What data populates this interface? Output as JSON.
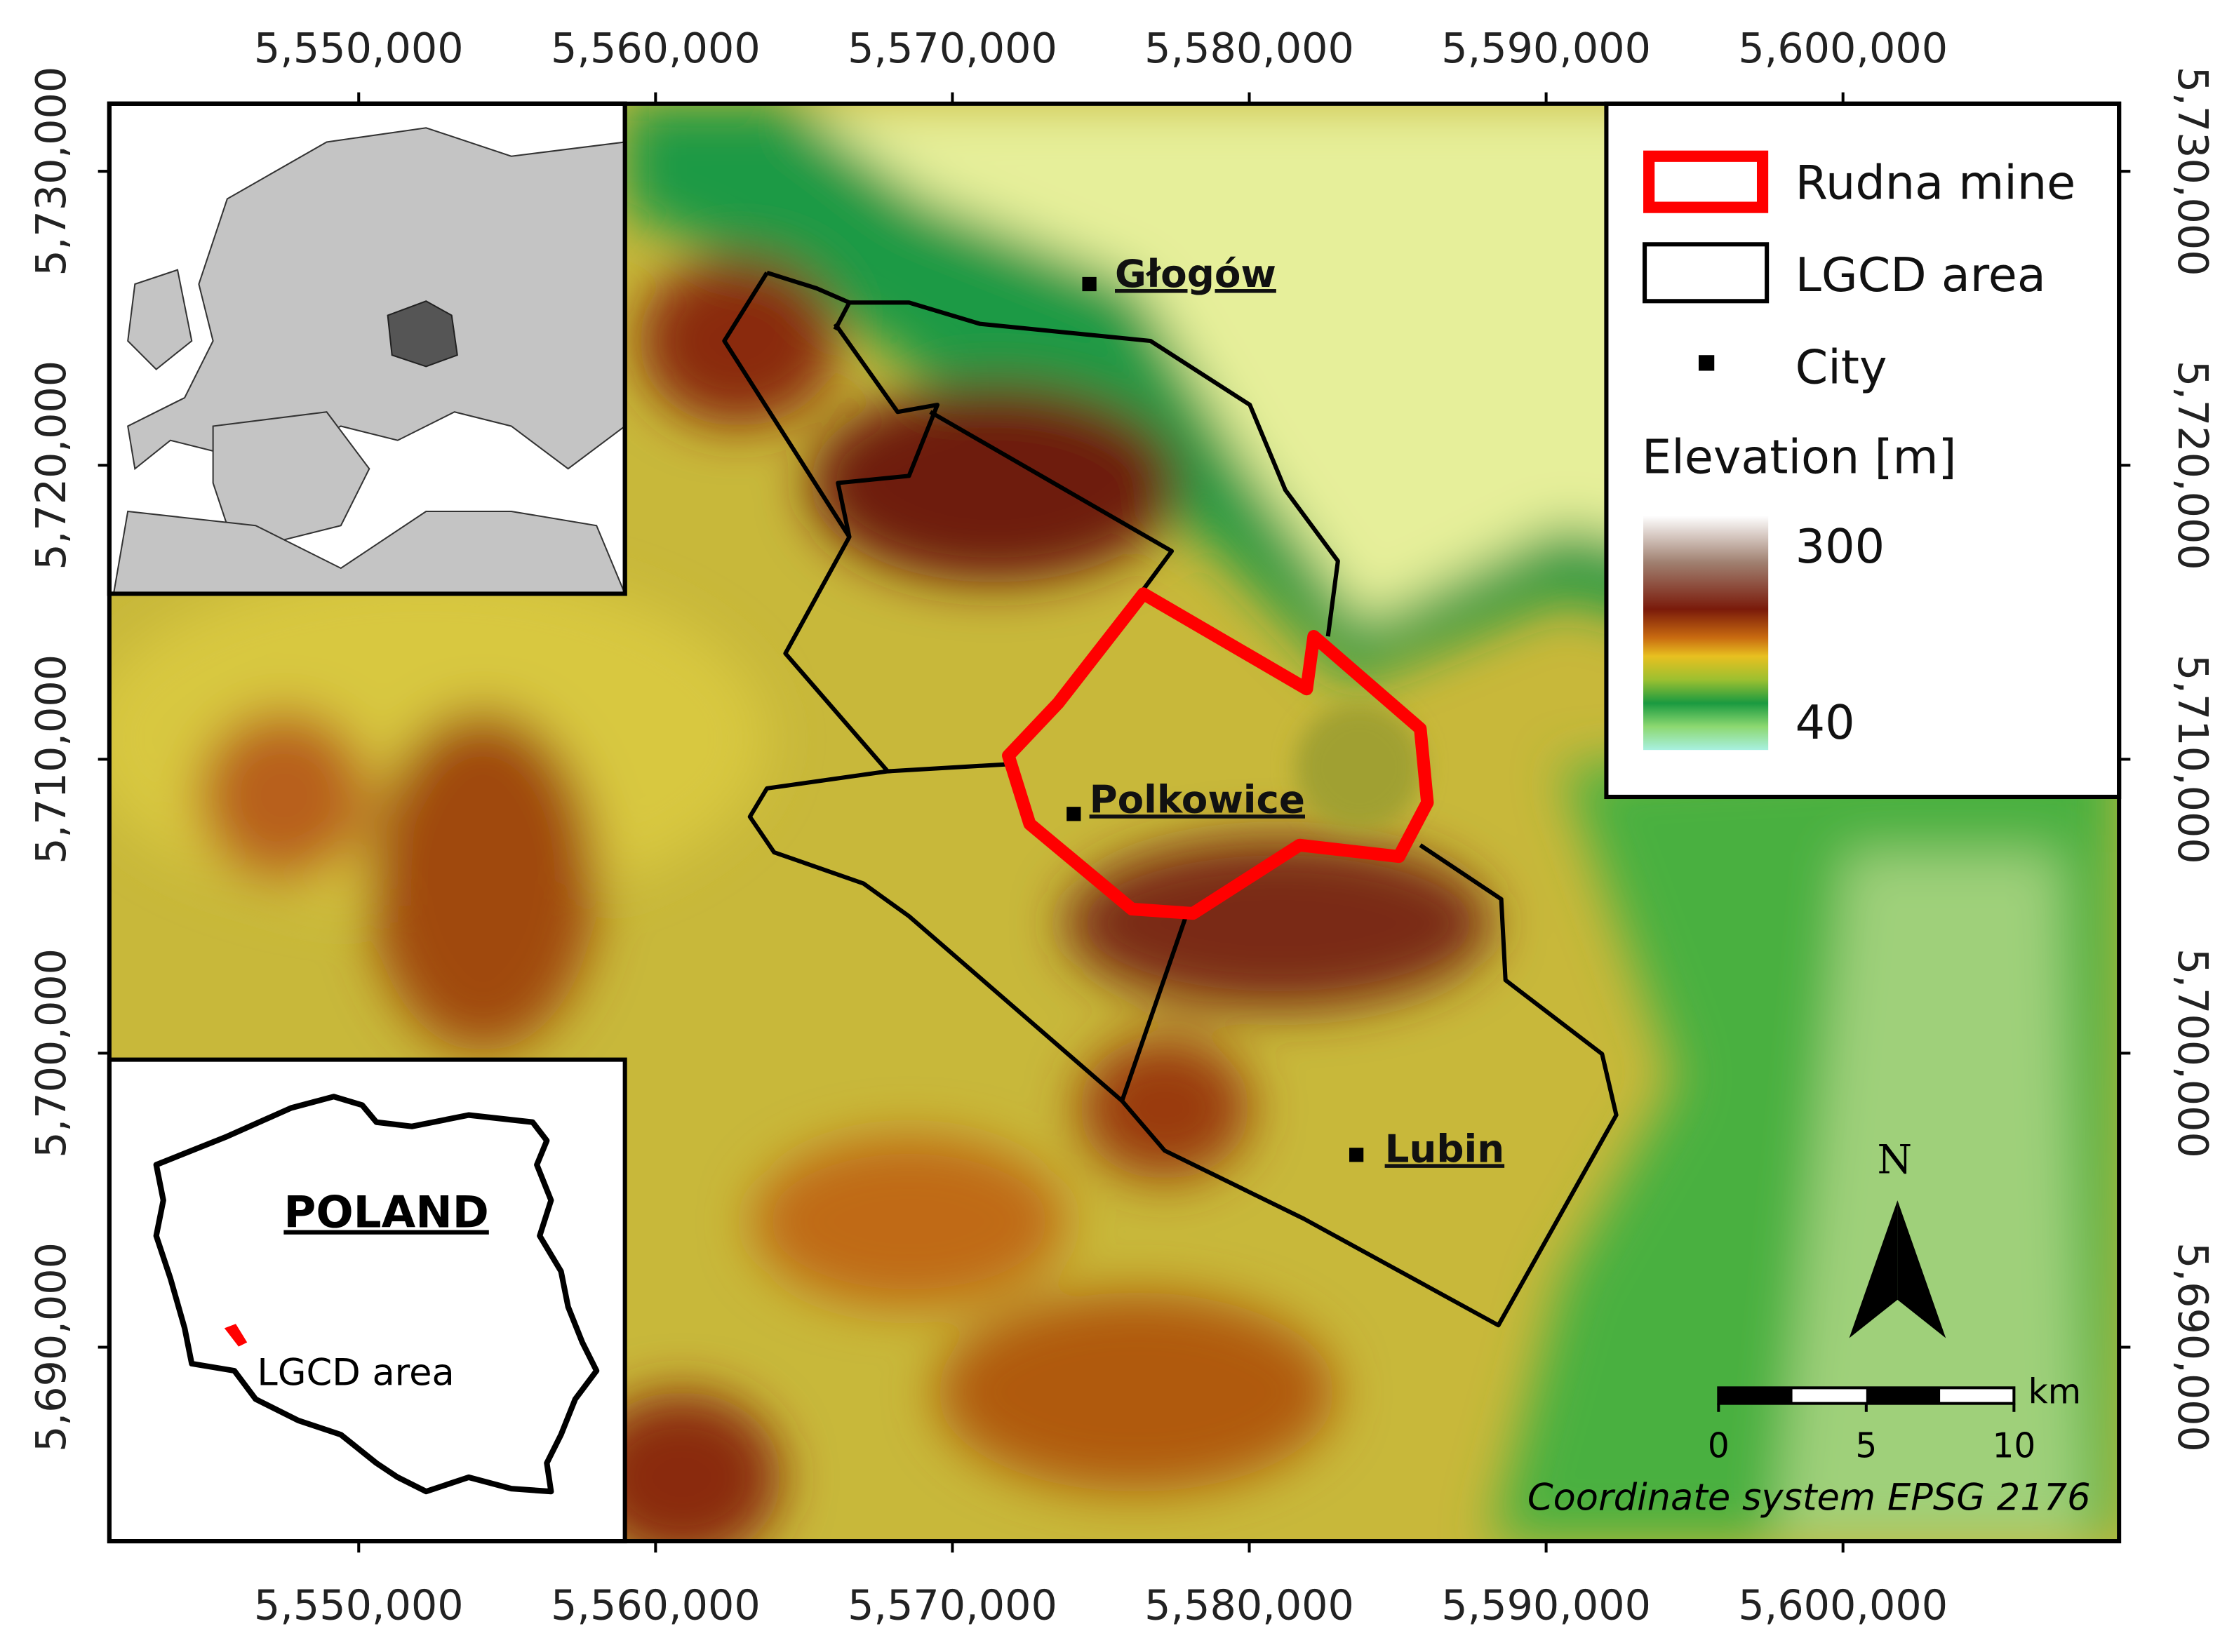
{
  "map": {
    "xlim": [
      5541600,
      5609300
    ],
    "ylim": [
      5683400,
      5732300
    ],
    "x_ticks": [
      {
        "value": 5550000,
        "label": "5,550,000"
      },
      {
        "value": 5560000,
        "label": "5,560,000"
      },
      {
        "value": 5570000,
        "label": "5,570,000"
      },
      {
        "value": 5580000,
        "label": "5,580,000"
      },
      {
        "value": 5590000,
        "label": "5,590,000"
      },
      {
        "value": 5600000,
        "label": "5,600,000"
      }
    ],
    "y_ticks": [
      {
        "value": 5730000,
        "label": "5,730,000"
      },
      {
        "value": 5720000,
        "label": "5,720,000"
      },
      {
        "value": 5710000,
        "label": "5,710,000"
      },
      {
        "value": 5700000,
        "label": "5,700,000"
      },
      {
        "value": 5690000,
        "label": "5,690,000"
      }
    ],
    "cities": [
      "Głogów",
      "Polkowice",
      "Lubin"
    ],
    "legend": {
      "items": [
        "Rudna mine",
        "LGCD area",
        "City"
      ],
      "elevation_title": "Elevation [m]",
      "elevation_max": 300,
      "elevation_min": 40
    },
    "inset": {
      "country": "POLAND",
      "area_label": "LGCD area"
    },
    "north": "N",
    "scale_bar": {
      "ticks": [
        0,
        5,
        10
      ],
      "unit": "km"
    },
    "crs_note": "Coordinate system EPSG 2176"
  }
}
